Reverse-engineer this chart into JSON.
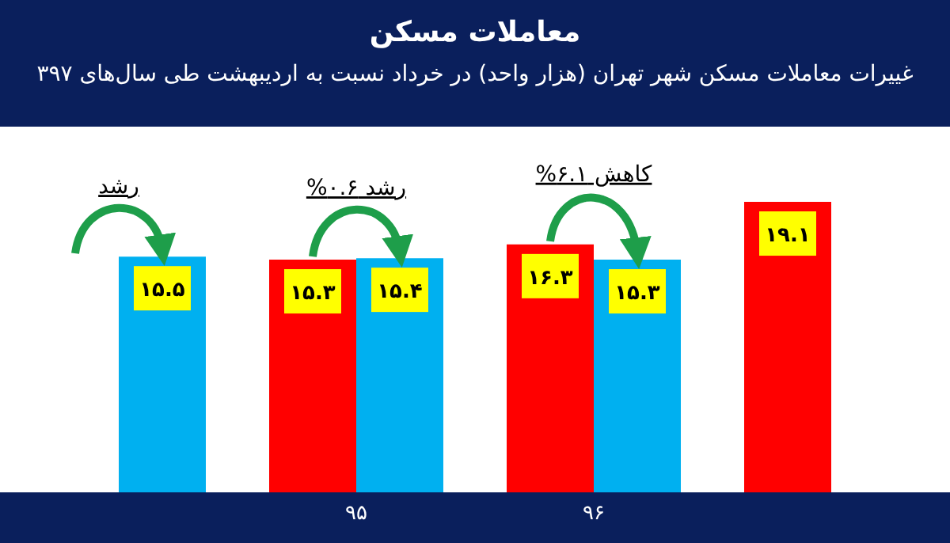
{
  "chart_data": {
    "type": "bar",
    "title": "معاملات مسکن",
    "subtitle": "غییرات معاملات مسکن شهر تهران (هزار واحد) در خرداد نسبت به اردیبهشت طی سال‌های ۳۹۷",
    "categories": [
      null,
      "۹۵",
      "۹۶",
      null
    ],
    "series": [
      {
        "color": "#ff0000",
        "values": [
          null,
          15.3,
          16.3,
          19.1
        ],
        "value_labels": [
          null,
          "۱۵.۳",
          "۱۶.۳",
          "۱۹.۱"
        ]
      },
      {
        "color": "#00b0f0",
        "values": [
          15.5,
          15.4,
          15.3,
          null
        ],
        "value_labels": [
          "۱۵.۵",
          "۱۵.۴",
          "۱۵.۳",
          null
        ]
      }
    ],
    "tick_labels": "x",
    "annotations": [
      "رشد",
      "رشد ۰.۶%",
      "کاهش ۶.۱%"
    ]
  }
}
